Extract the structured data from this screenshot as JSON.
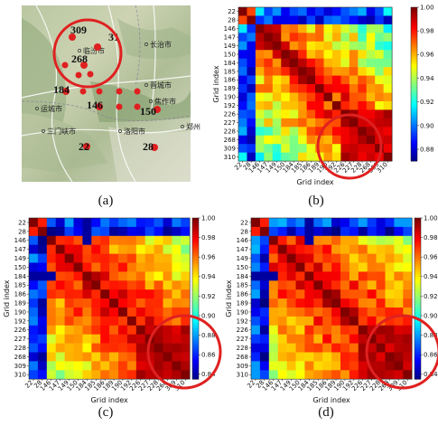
{
  "captions": [
    "(a)",
    "(b)",
    "(c)",
    "(d)"
  ],
  "map": {
    "city_labels": [
      {
        "text": "长治市",
        "x": 166,
        "y": 52
      },
      {
        "text": "晋城市",
        "x": 166,
        "y": 97
      },
      {
        "text": "焦作市",
        "x": 171,
        "y": 115
      },
      {
        "text": "运城市",
        "x": 45,
        "y": 123
      },
      {
        "text": "三门峡市",
        "x": 52,
        "y": 148
      },
      {
        "text": "洛阳市",
        "x": 137,
        "y": 148
      },
      {
        "text": "郑州",
        "x": 206,
        "y": 143
      },
      {
        "text": "临汾市",
        "x": 92,
        "y": 59
      }
    ],
    "points": [
      {
        "label": "309",
        "x": 80,
        "y": 41,
        "lx": 78,
        "ly": 37
      },
      {
        "label": "31",
        "x": 108,
        "y": 52,
        "lx": 120,
        "ly": 45
      },
      {
        "label": "268",
        "x": 93,
        "y": 72,
        "lx": 79,
        "ly": 69
      },
      {
        "label": "184",
        "x": 73,
        "y": 101,
        "lx": 59,
        "ly": 103
      },
      {
        "label": "146",
        "x": 110,
        "y": 118,
        "lx": 96,
        "ly": 120
      },
      {
        "label": "150",
        "x": 174,
        "y": 121,
        "lx": 155,
        "ly": 127
      },
      {
        "label": "22",
        "x": 96,
        "y": 162,
        "lx": 87,
        "ly": 166
      },
      {
        "label": "28",
        "x": 171,
        "y": 163,
        "lx": 158,
        "ly": 166
      }
    ]
  },
  "chart_data": [
    {
      "type": "heatmap",
      "panel": "b",
      "xlabel": "Grid index",
      "ylabel": "Grid index",
      "categories": [
        "22",
        "28",
        "146",
        "147",
        "149",
        "150",
        "184",
        "185",
        "186",
        "189",
        "190",
        "192",
        "226",
        "227",
        "228",
        "268",
        "309",
        "310"
      ],
      "colorbar_ticks": [
        0.88,
        0.9,
        0.92,
        0.94,
        0.96,
        0.98,
        1.0
      ],
      "colorbar_range": [
        0.87,
        1.0
      ]
    },
    {
      "type": "heatmap",
      "panel": "c",
      "xlabel": "Grid index",
      "ylabel": "Grid index",
      "categories": [
        "22",
        "28",
        "146",
        "147",
        "149",
        "150",
        "184",
        "185",
        "186",
        "189",
        "190",
        "192",
        "226",
        "227",
        "228",
        "268",
        "309",
        "310"
      ],
      "colorbar_ticks": [
        0.84,
        0.86,
        0.88,
        0.9,
        0.92,
        0.94,
        0.96,
        0.98,
        1.0
      ],
      "colorbar_range": [
        0.835,
        1.0
      ]
    },
    {
      "type": "heatmap",
      "panel": "d",
      "xlabel": "Grid index",
      "ylabel": "Grid index",
      "categories": [
        "22",
        "28",
        "146",
        "147",
        "149",
        "150",
        "184",
        "185",
        "186",
        "189",
        "190",
        "192",
        "226",
        "227",
        "228",
        "268",
        "309",
        "310"
      ],
      "colorbar_ticks": [
        0.84,
        0.86,
        0.88,
        0.9,
        0.92,
        0.94,
        0.96,
        0.98,
        1.0
      ],
      "colorbar_range": [
        0.835,
        1.0
      ]
    }
  ],
  "colors": {
    "highlight_circle": "#e02020",
    "marker": "#e02020"
  }
}
